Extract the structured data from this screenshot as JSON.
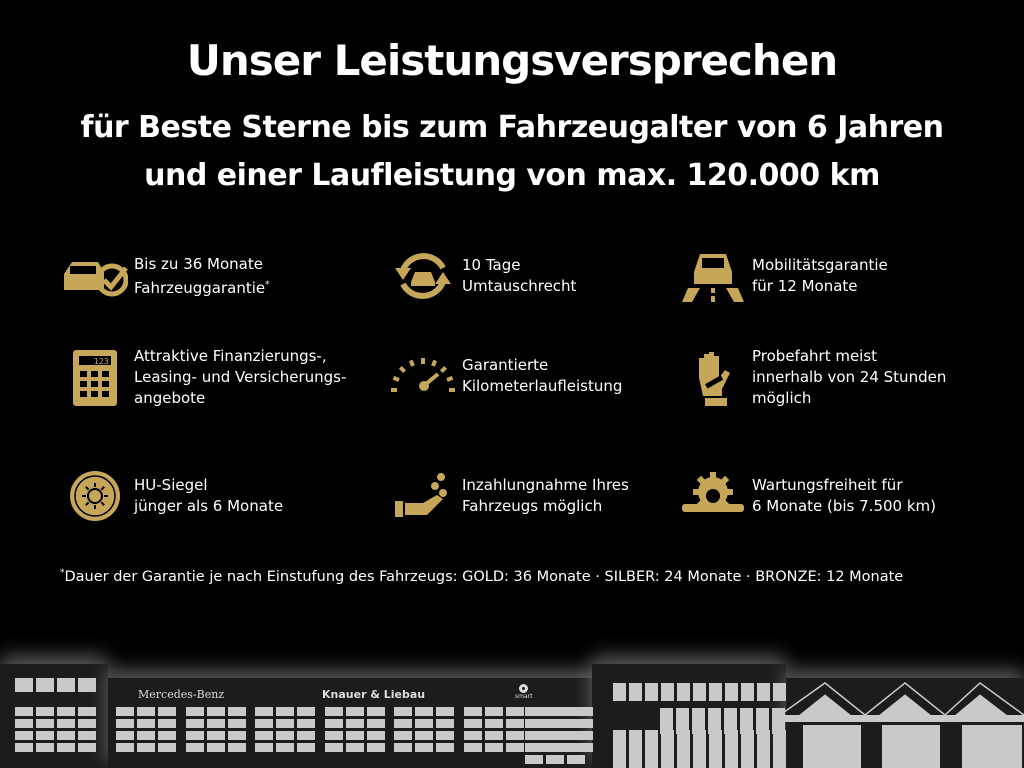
{
  "title": "Unser Leistungsversprechen",
  "subtitle": [
    "für Beste Sterne bis zum Fahrzeugalter von 6  Jahren",
    "und einer Laufleistung von max. 120.000 km"
  ],
  "accent": "#c6a75a",
  "items": [
    {
      "icon": "car-check-icon",
      "lines": [
        "Bis zu 36 Monate",
        "Fahrzeuggarantie"
      ],
      "sup": "*"
    },
    {
      "icon": "car-exchange-icon",
      "lines": [
        "10 Tage",
        "Umtauschrecht"
      ]
    },
    {
      "icon": "car-road-icon",
      "lines": [
        "Mobilitätsgarantie",
        "für 12 Monate"
      ]
    },
    {
      "icon": "calculator-icon",
      "lines": [
        "Attraktive Finanzierungs-,",
        "Leasing- und Versicherungs-",
        "angebote"
      ]
    },
    {
      "icon": "speedometer-icon",
      "lines": [
        "Garantierte",
        "Kilometerlaufleistung"
      ]
    },
    {
      "icon": "hand-key-icon",
      "lines": [
        "Probefahrt meist",
        "innerhalb von 24 Stunden",
        "möglich"
      ]
    },
    {
      "icon": "seal-icon",
      "lines": [
        "HU-Siegel",
        "jünger als 6 Monate"
      ]
    },
    {
      "icon": "hand-coins-icon",
      "lines": [
        "Inzahlungnahme Ihres",
        "Fahrzeugs möglich"
      ]
    },
    {
      "icon": "gear-wrench-icon",
      "lines": [
        "Wartungsfreiheit für",
        "6 Monate (bis 7.500 km)"
      ]
    }
  ],
  "footnote": {
    "mark": "*",
    "text": "Dauer der Garantie je nach Einstufung des Fahrzeugs: GOLD: 36 Monate · SILBER: 24 Monate · BRONZE: 12 Monate"
  },
  "building": {
    "brand1": "Mercedes-Benz",
    "brand2": "Knauer & Liebau",
    "brand3": "smart",
    "calc_display": "123"
  }
}
